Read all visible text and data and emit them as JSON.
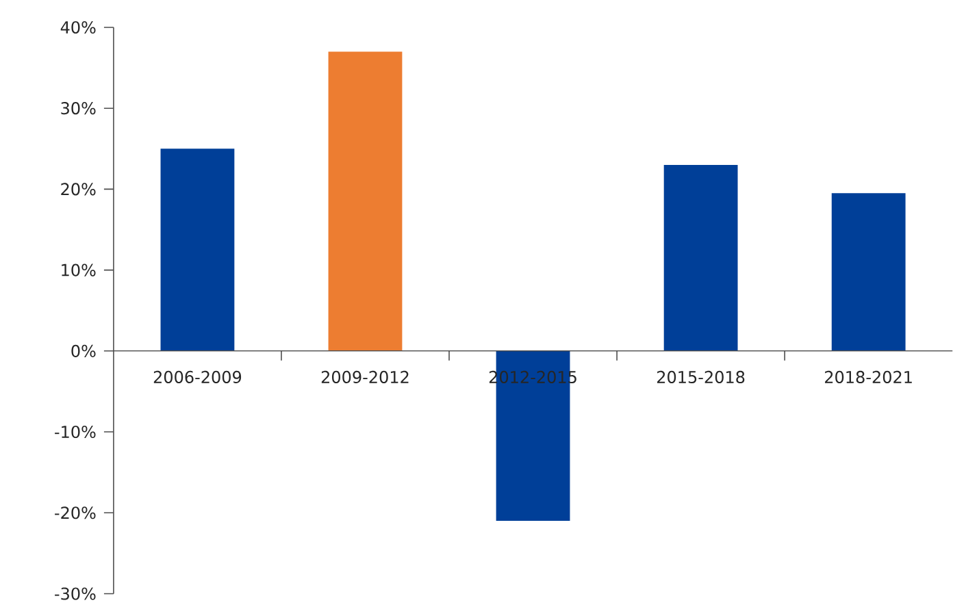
{
  "chart_data": {
    "type": "bar",
    "categories": [
      "2006-2009",
      "2009-2012",
      "2012-2015",
      "2015-2018",
      "2018-2021"
    ],
    "values": [
      25,
      37,
      -21,
      23,
      19.5
    ],
    "colors": [
      "#003f98",
      "#ed7d31",
      "#003f98",
      "#003f98",
      "#003f98"
    ],
    "ylim": [
      -30,
      40
    ],
    "yticks": [
      {
        "value": -30,
        "label": "-30%"
      },
      {
        "value": -20,
        "label": "-20%"
      },
      {
        "value": -10,
        "label": "-10%"
      },
      {
        "value": 0,
        "label": "0%"
      },
      {
        "value": 10,
        "label": "10%"
      },
      {
        "value": 20,
        "label": "20%"
      },
      {
        "value": 30,
        "label": "30%"
      },
      {
        "value": 40,
        "label": "40%"
      }
    ],
    "grid": false
  }
}
